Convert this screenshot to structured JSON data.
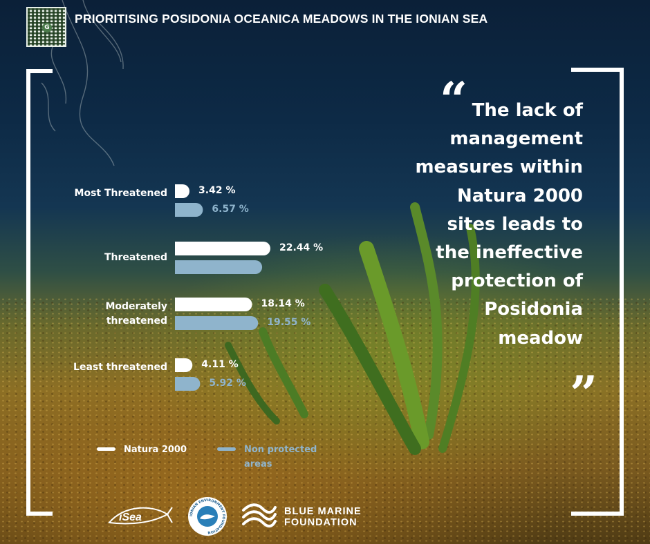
{
  "header": {
    "title": "PRIORITISING POSIDONIA OCEANICA MEADOWS IN THE IONIAN SEA",
    "qr_icon": "qr-code-icon"
  },
  "quote": {
    "open_mark": "“",
    "close_mark": "”",
    "text": "The lack of management measures within Natura 2000 sites leads to the ineffective protection of Posidonia meadow"
  },
  "chart_data": {
    "type": "bar",
    "orientation": "horizontal",
    "categories": [
      "Most Threatened",
      "Threatened",
      "Moderately threatened",
      "Least threatened"
    ],
    "series": [
      {
        "name": "Natura 2000",
        "color": "#ffffff",
        "values": [
          3.42,
          22.44,
          18.14,
          4.11
        ],
        "labels": [
          "3.42 %",
          "22.44 %",
          "18.14 %",
          "4.11 %"
        ]
      },
      {
        "name": "Non protected areas",
        "color": "#8fb4cc",
        "values": [
          6.57,
          20.5,
          19.55,
          5.92
        ],
        "labels": [
          "6.57 %",
          "",
          "19.55 %",
          "5.92 %"
        ]
      }
    ],
    "legend": "bottom-left",
    "grid": false,
    "xlim": [
      0,
      25
    ]
  },
  "footer": {
    "logos": [
      "isea-logo",
      "ionian-environment-foundation-logo",
      "blue-marine-foundation-logo"
    ],
    "isea_text": "iSea",
    "ionian_ring_text": "IONIAN ENVIRONMENT FOUNDATION",
    "bmf_text": "BLUE MARINE\nFOUNDATION"
  }
}
